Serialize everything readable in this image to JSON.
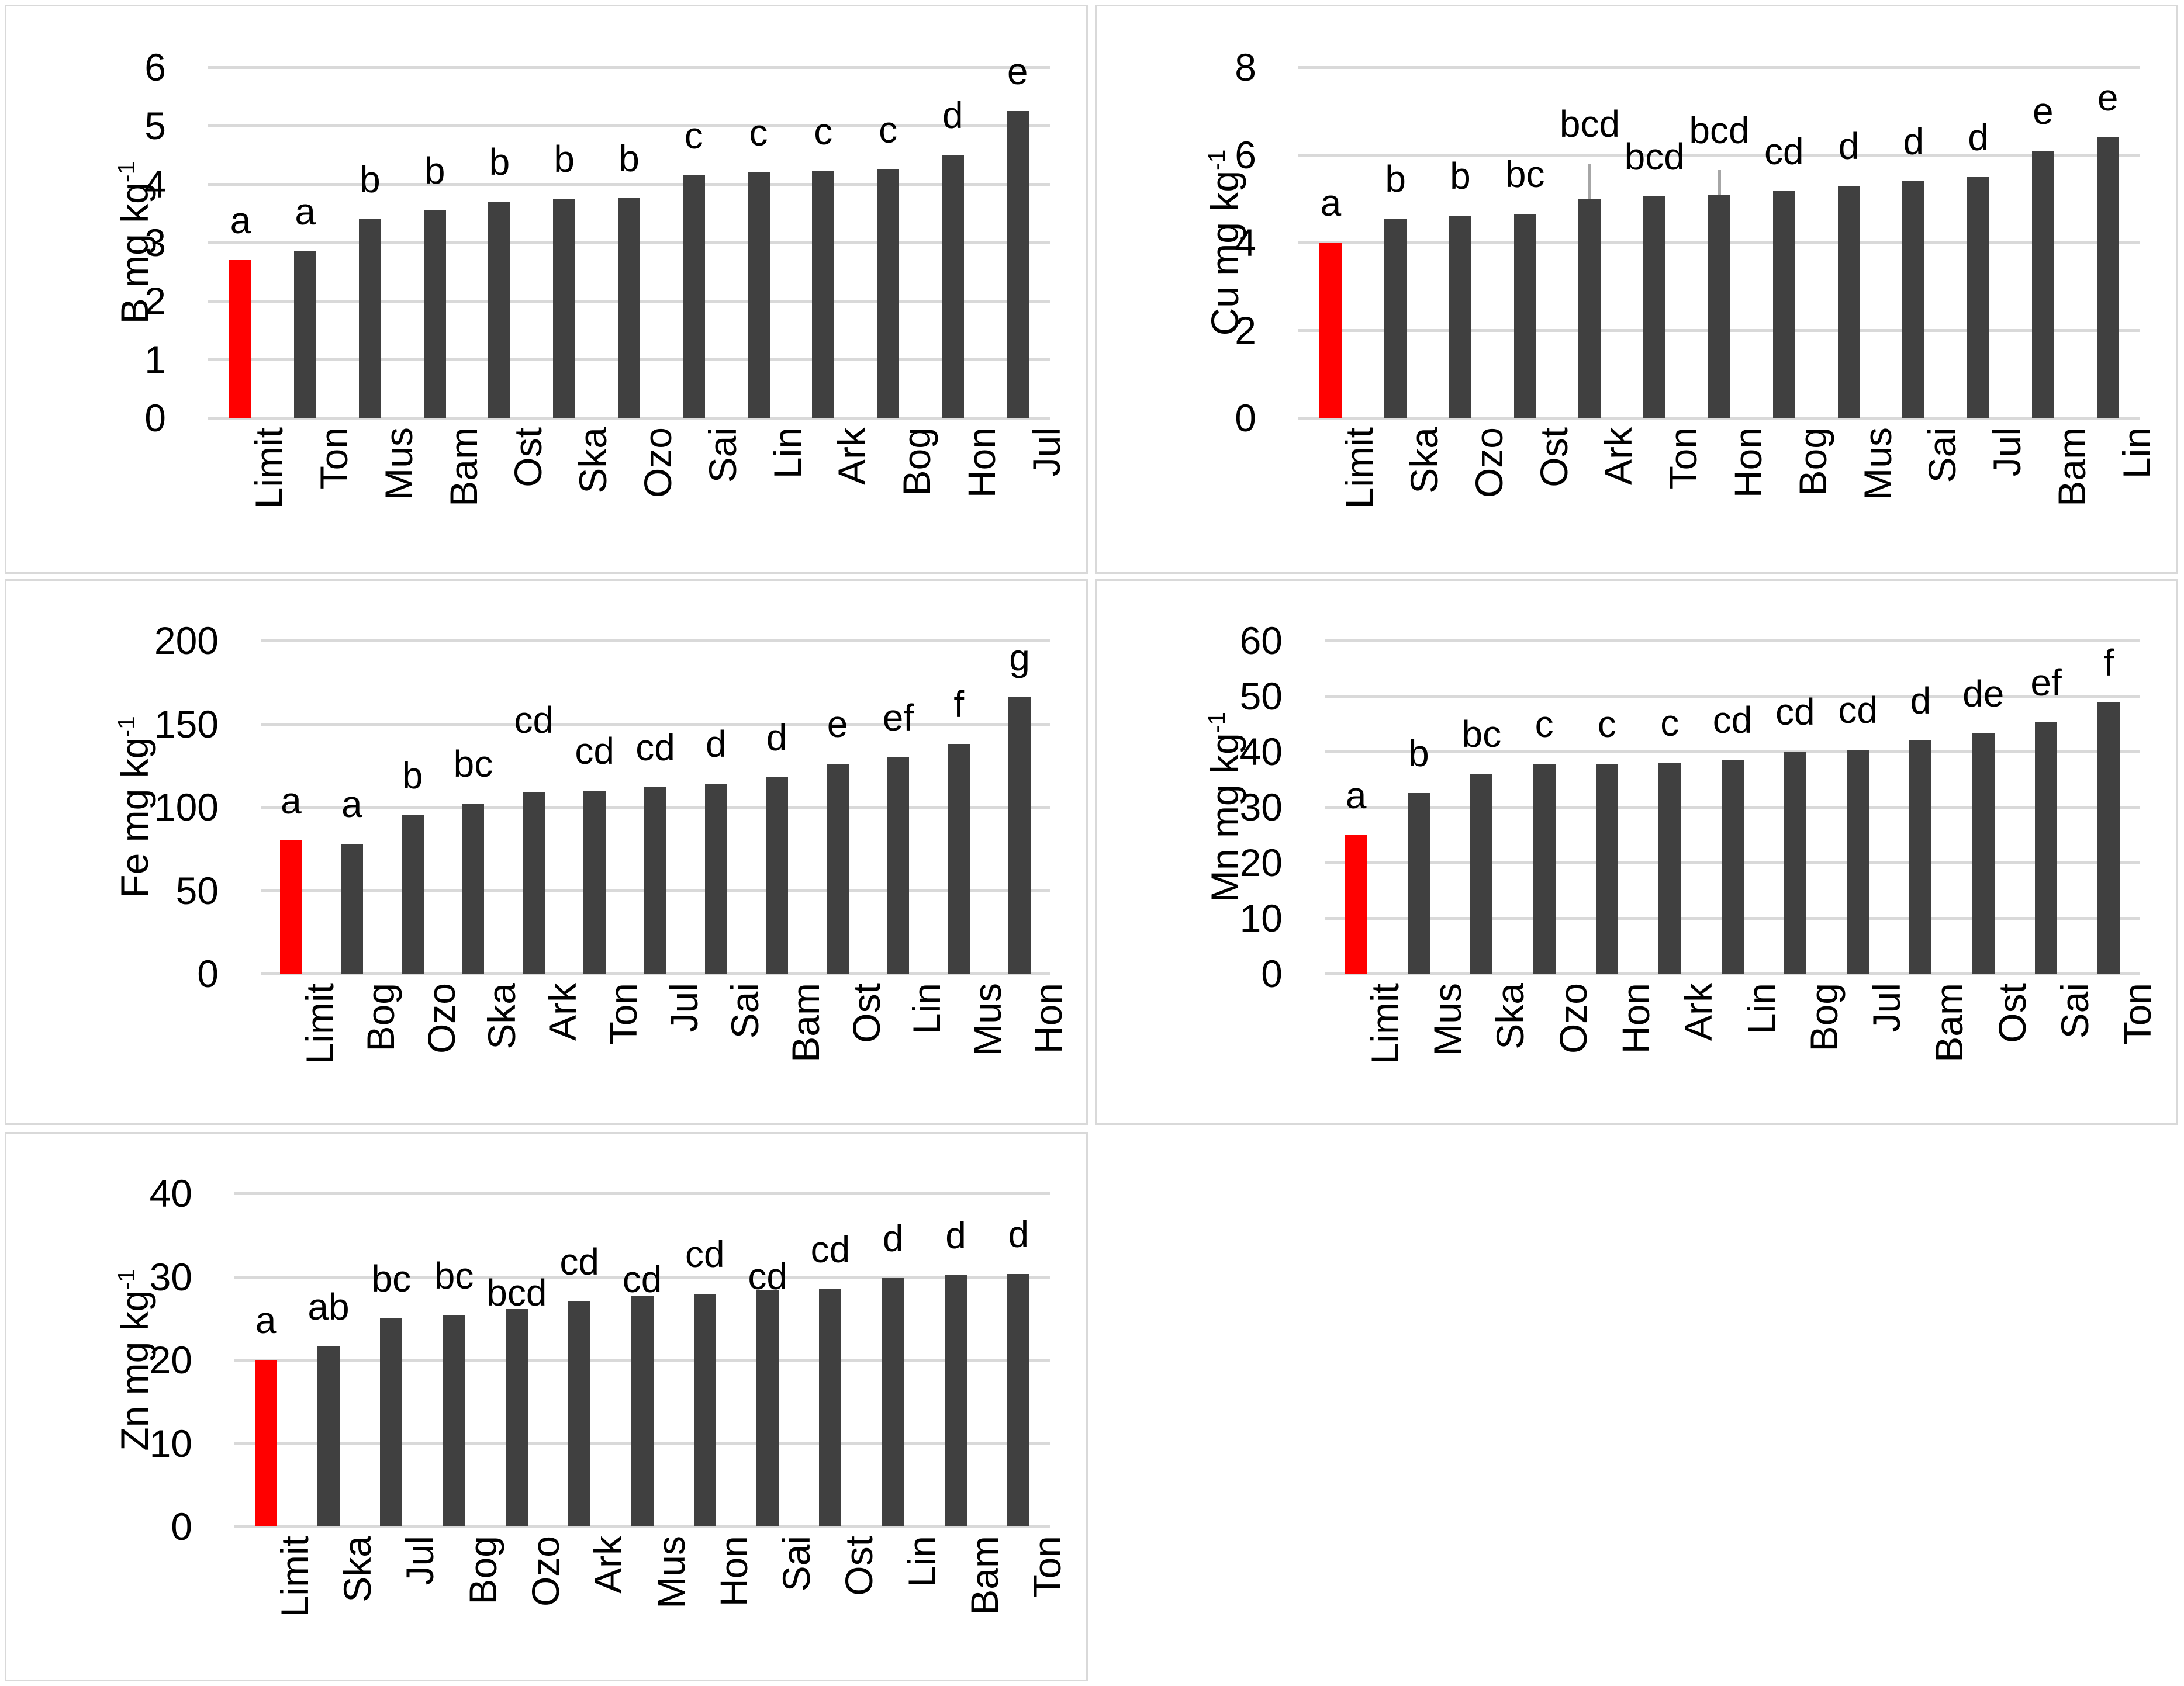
{
  "figure": {
    "title": "",
    "panel_count": 5,
    "colors": {
      "bar": "#404040",
      "limit_bar": "#ff0000",
      "gridline": "#d9d9d9",
      "panel_border": "#d9d9d9",
      "error_bar": "#a6a6a6",
      "text": "#000000",
      "background": "#ffffff"
    }
  },
  "chart_data": [
    {
      "type": "bar",
      "element": "B",
      "ylabel_main": "B mg kg",
      "ylabel_sup": "-1",
      "ylim": [
        0,
        6
      ],
      "yticks": [
        0,
        1,
        2,
        3,
        4,
        5,
        6
      ],
      "grid": true,
      "legend": "none",
      "categories": [
        "Limit",
        "Ton",
        "Mus",
        "Bam",
        "Ost",
        "Ska",
        "Ozo",
        "Sai",
        "Lin",
        "Ark",
        "Bog",
        "Hon",
        "Jul"
      ],
      "values": [
        2.7,
        2.85,
        3.4,
        3.55,
        3.7,
        3.75,
        3.76,
        4.15,
        4.2,
        4.22,
        4.25,
        4.5,
        5.25
      ],
      "letters": [
        "a",
        "a",
        "b",
        "b",
        "b",
        "b",
        "b",
        "c",
        "c",
        "c",
        "c",
        "d",
        "e"
      ],
      "limit_index": 0,
      "errors": {},
      "label_dy": {}
    },
    {
      "type": "bar",
      "element": "Cu",
      "ylabel_main": "Cu mg kg",
      "ylabel_sup": "-1",
      "ylim": [
        0,
        8
      ],
      "yticks": [
        0,
        2,
        4,
        6,
        8
      ],
      "grid": true,
      "legend": "none",
      "categories": [
        "Limit",
        "Ska",
        "Ozo",
        "Ost",
        "Ark",
        "Ton",
        "Hon",
        "Bog",
        "Mus",
        "Sai",
        "Jul",
        "Bam",
        "Lin"
      ],
      "values": [
        4.0,
        4.55,
        4.62,
        4.65,
        5.0,
        5.05,
        5.1,
        5.18,
        5.3,
        5.4,
        5.5,
        6.1,
        6.4
      ],
      "letters": [
        "a",
        "b",
        "b",
        "bc",
        "bcd",
        "bcd",
        "bcd",
        "cd",
        "d",
        "d",
        "d",
        "e",
        "e"
      ],
      "limit_index": 0,
      "errors": {
        "4": 0.8,
        "6": 0.55
      },
      "label_dy": {}
    },
    {
      "type": "bar",
      "element": "Fe",
      "ylabel_main": "Fe mg kg",
      "ylabel_sup": "-1",
      "ylim": [
        0,
        200
      ],
      "yticks": [
        0,
        50,
        100,
        150,
        200
      ],
      "grid": true,
      "legend": "none",
      "categories": [
        "Limit",
        "Bog",
        "Ozo",
        "Ska",
        "Ark",
        "Ton",
        "Jul",
        "Sai",
        "Bam",
        "Ost",
        "Lin",
        "Mus",
        "Hon"
      ],
      "values": [
        80,
        78,
        95,
        102,
        109,
        110,
        112,
        114,
        118,
        126,
        130,
        138,
        166
      ],
      "letters": [
        "a",
        "a",
        "b",
        "bc",
        "cd",
        "cd",
        "cd",
        "d",
        "d",
        "e",
        "ef",
        "f",
        "g"
      ],
      "limit_index": 0,
      "errors": {},
      "label_dy": {
        "4": -55
      }
    },
    {
      "type": "bar",
      "element": "Mn",
      "ylabel_main": "Mn mg kg",
      "ylabel_sup": "-1",
      "ylim": [
        0,
        60
      ],
      "yticks": [
        0,
        10,
        20,
        30,
        40,
        50,
        60
      ],
      "grid": true,
      "legend": "none",
      "categories": [
        "Limit",
        "Mus",
        "Ska",
        "Ozo",
        "Hon",
        "Ark",
        "Lin",
        "Bog",
        "Jul",
        "Bam",
        "Ost",
        "Sai",
        "Ton"
      ],
      "values": [
        25,
        32.5,
        36,
        37.8,
        37.8,
        38,
        38.5,
        40,
        40.3,
        42,
        43.3,
        45.3,
        48.8
      ],
      "letters": [
        "a",
        "b",
        "bc",
        "c",
        "c",
        "c",
        "cd",
        "cd",
        "cd",
        "d",
        "de",
        "ef",
        "f"
      ],
      "limit_index": 0,
      "errors": {},
      "label_dy": {}
    },
    {
      "type": "bar",
      "element": "Zn",
      "ylabel_main": "Zn mg kg",
      "ylabel_sup": "-1",
      "ylim": [
        0,
        40
      ],
      "yticks": [
        0,
        10,
        20,
        30,
        40
      ],
      "grid": true,
      "legend": "none",
      "categories": [
        "Limit",
        "Ska",
        "Jul",
        "Bog",
        "Ozo",
        "Ark",
        "Mus",
        "Hon",
        "Sai",
        "Ost",
        "Lin",
        "Bam",
        "Ton"
      ],
      "values": [
        20,
        21.6,
        25,
        25.3,
        26.1,
        27,
        27.7,
        27.9,
        28.4,
        28.5,
        29.8,
        30.2,
        30.3
      ],
      "letters": [
        "a",
        "ab",
        "bc",
        "bc",
        "bcd",
        "cd",
        "cd",
        "cd",
        "cd",
        "cd",
        "d",
        "d",
        "d"
      ],
      "limit_index": 0,
      "errors": {},
      "label_dy": {
        "4": 40,
        "6": 40,
        "8": 45
      }
    }
  ]
}
